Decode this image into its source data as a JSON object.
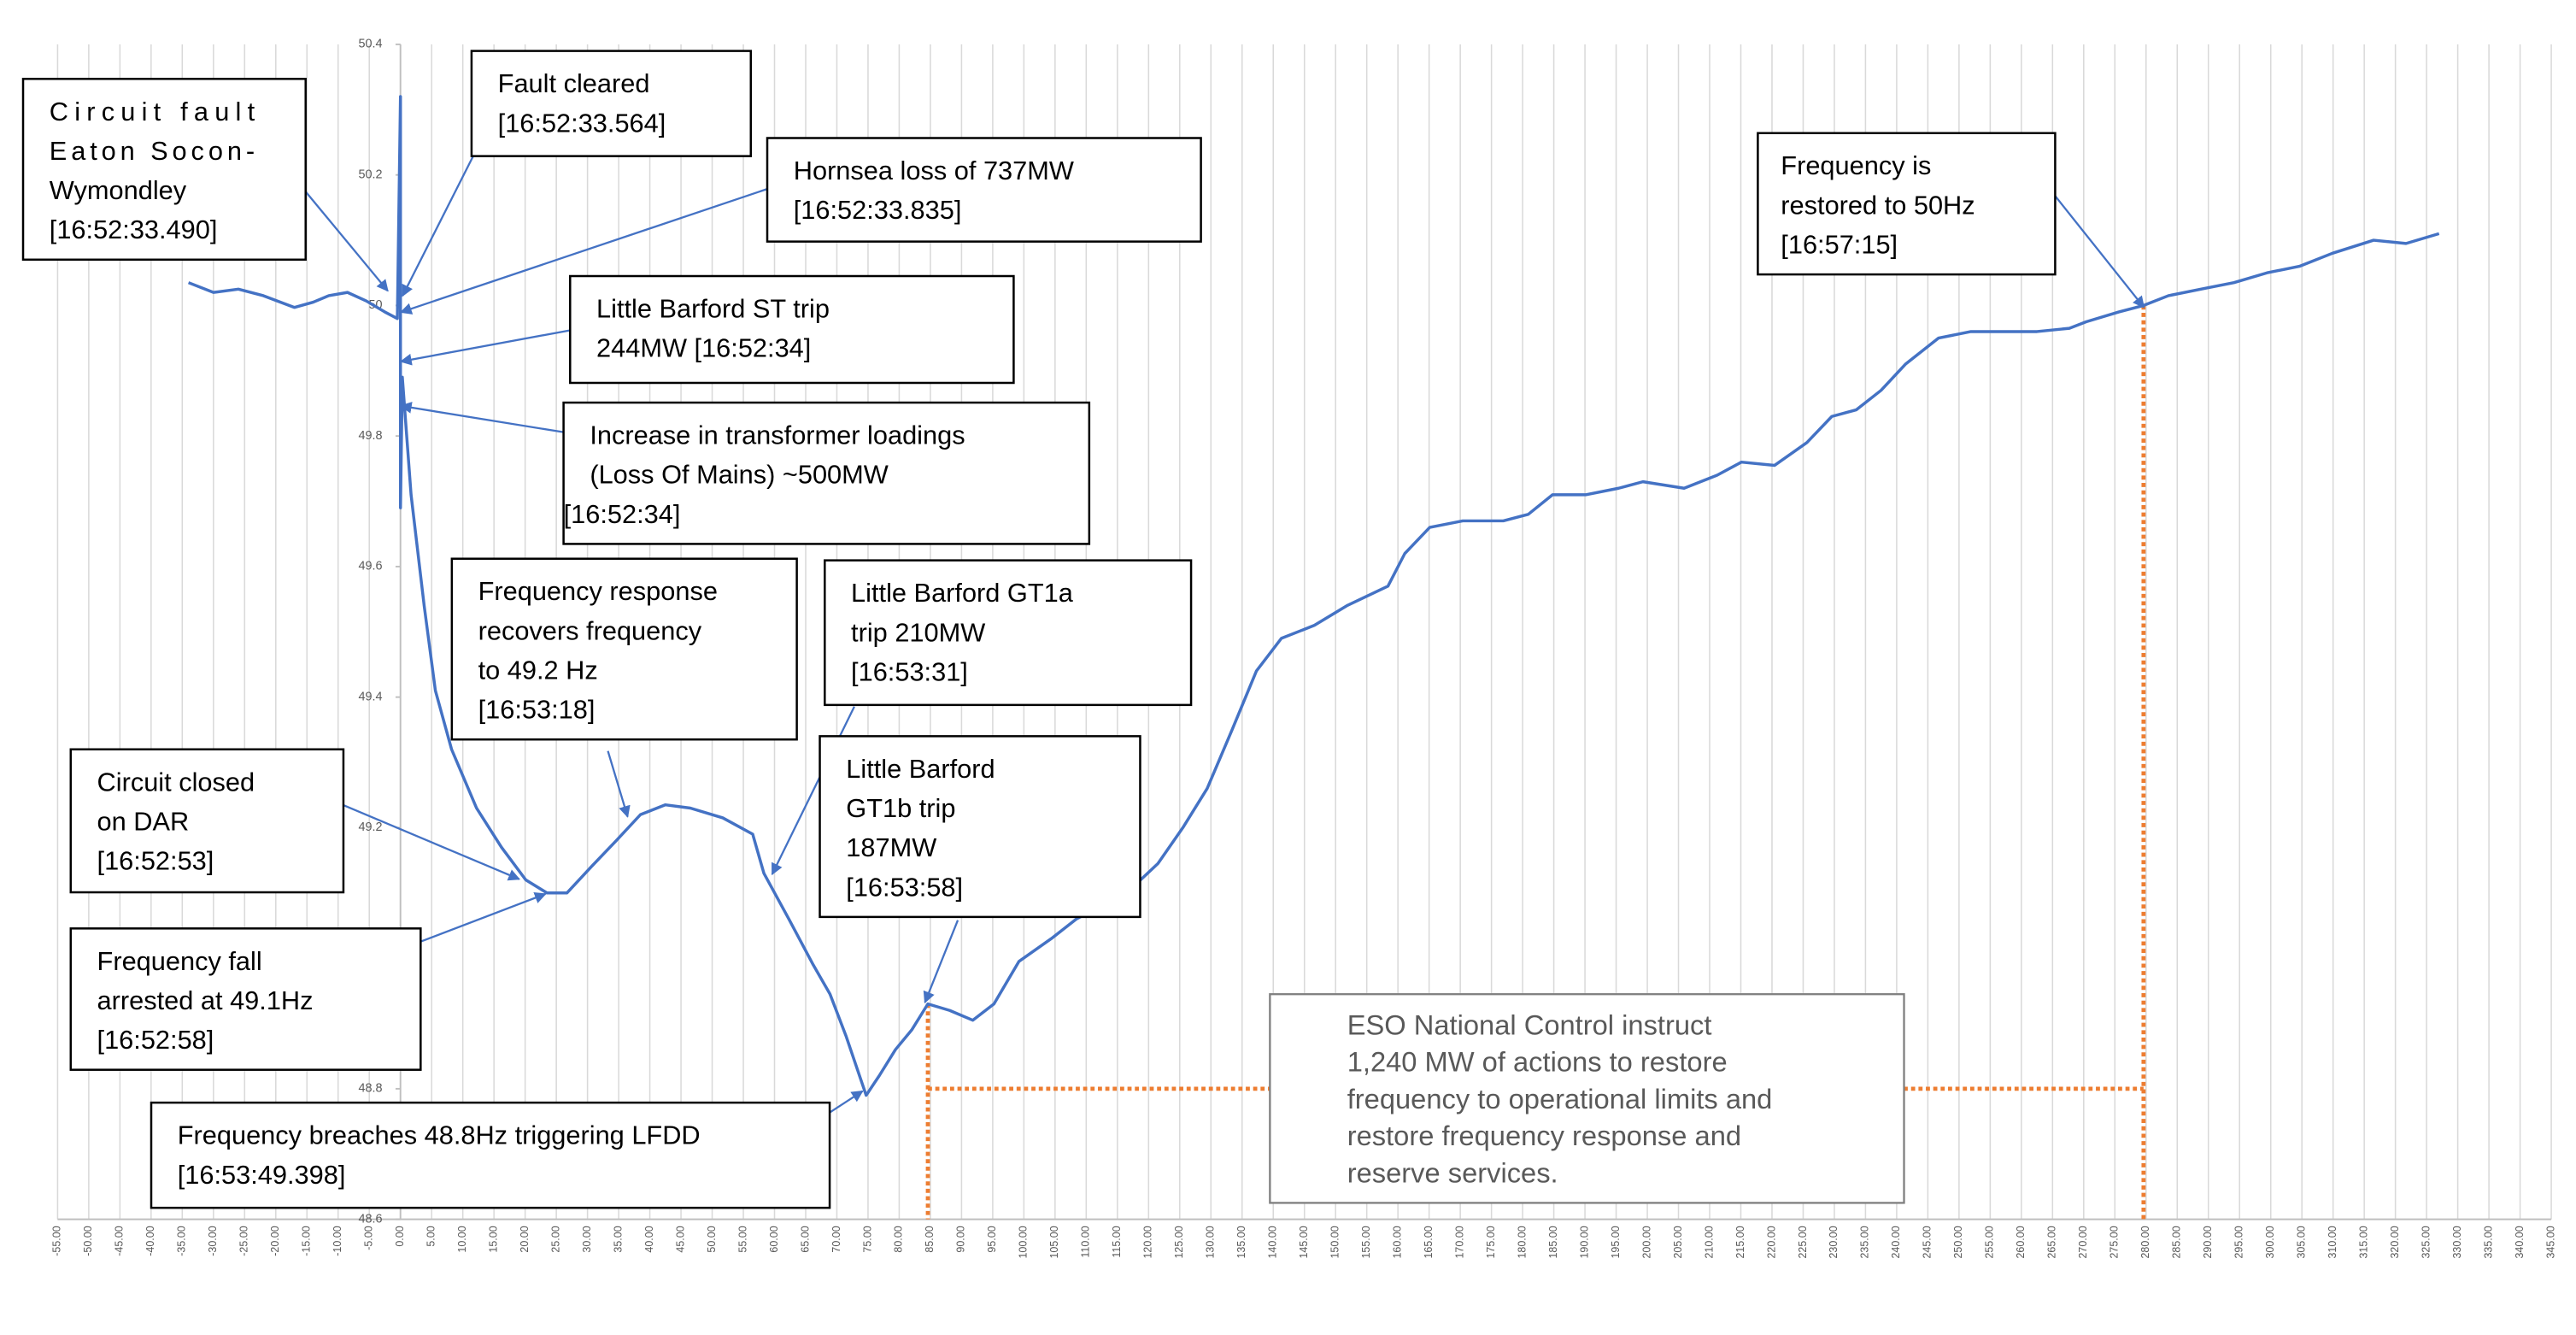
{
  "chart_data": {
    "type": "line",
    "x": [
      -34,
      -30,
      -26,
      -22,
      -17,
      -14,
      -11.5,
      -8.5,
      -5.5,
      -2.5,
      -0.5,
      0,
      0,
      0.3,
      1.7,
      3.8,
      5.6,
      8.2,
      12.2,
      16.2,
      20.1,
      23.5,
      26.7,
      30.6,
      34.6,
      38.5,
      42.5,
      46.5,
      51.7,
      56.5,
      58.3,
      62.3,
      66.2,
      68.9,
      71.5,
      74.7,
      76.8,
      79.4,
      82,
      84.6,
      88.1,
      91.8,
      95.2,
      99.2,
      104.4,
      108.4,
      112.3,
      117.6,
      121.5,
      125.5,
      129.4,
      133.4,
      137.3,
      141.3,
      146.6,
      151.8,
      158.4,
      161.1,
      165.1,
      170.4,
      176.9,
      180.9,
      184.8,
      190.1,
      195.4,
      199.3,
      205.9,
      211.2,
      215.1,
      220.4,
      225.6,
      229.6,
      233.5,
      237.5,
      241.4,
      246.7,
      251.9,
      262.5,
      267.7,
      270.4,
      275.6,
      279.6,
      283.6,
      288.8,
      294.1,
      299.4,
      304.6,
      309.9,
      316.5,
      321.7,
      327
    ],
    "series": [
      {
        "color": "#4472c4",
        "values": [
          50.035,
          50.02,
          50.025,
          50.015,
          49.997,
          50.005,
          50.015,
          50.02,
          50.007,
          49.99,
          49.98,
          50.32,
          49.69,
          49.89,
          49.71,
          49.54,
          49.41,
          49.32,
          49.23,
          49.17,
          49.12,
          49.1,
          49.1,
          49.14,
          49.18,
          49.22,
          49.235,
          49.23,
          49.215,
          49.19,
          49.13,
          49.06,
          48.99,
          48.945,
          48.88,
          48.79,
          48.82,
          48.86,
          48.89,
          48.93,
          48.92,
          48.905,
          48.93,
          48.995,
          49.03,
          49.06,
          49.08,
          49.11,
          49.145,
          49.2,
          49.26,
          49.35,
          49.44,
          49.49,
          49.51,
          49.54,
          49.57,
          49.62,
          49.66,
          49.67,
          49.67,
          49.68,
          49.71,
          49.71,
          49.72,
          49.73,
          49.72,
          49.74,
          49.76,
          49.755,
          49.79,
          49.83,
          49.84,
          49.87,
          49.91,
          49.95,
          49.96,
          49.96,
          49.965,
          49.975,
          49.99,
          50.0,
          50.015,
          50.025,
          50.035,
          50.05,
          50.06,
          50.08,
          50.1,
          50.095,
          50.11
        ]
      }
    ],
    "xlim": [
      -55,
      345
    ],
    "ylim": [
      48.6,
      50.4
    ],
    "yticks": [
      48.6,
      48.8,
      49,
      49.2,
      49.4,
      49.6,
      49.8,
      50,
      50.2,
      50.4
    ],
    "xticks": [
      {
        "value": -55,
        "label": "-55.00"
      },
      {
        "value": -50,
        "label": "-50.00"
      },
      {
        "value": -45,
        "label": "-45.00"
      },
      {
        "value": -40,
        "label": "-40.00"
      },
      {
        "value": -35,
        "label": "-35.00"
      },
      {
        "value": -30,
        "label": "-30.00"
      },
      {
        "value": -25,
        "label": "-25.00"
      },
      {
        "value": -20,
        "label": "-20.00"
      },
      {
        "value": -15,
        "label": "-15.00"
      },
      {
        "value": -10,
        "label": "-10.00"
      },
      {
        "value": -5,
        "label": "-5.00"
      },
      {
        "value": 0,
        "label": "0.00"
      },
      {
        "value": 5,
        "label": "5.00"
      },
      {
        "value": 10,
        "label": "10.00"
      },
      {
        "value": 15,
        "label": "15.00"
      },
      {
        "value": 20,
        "label": "20.00"
      },
      {
        "value": 25,
        "label": "25.00"
      },
      {
        "value": 30,
        "label": "30.00"
      },
      {
        "value": 35,
        "label": "35.00"
      },
      {
        "value": 40,
        "label": "40.00"
      },
      {
        "value": 45,
        "label": "45.00"
      },
      {
        "value": 50,
        "label": "50.00"
      },
      {
        "value": 55,
        "label": "55.00"
      },
      {
        "value": 60,
        "label": "60.00"
      },
      {
        "value": 65,
        "label": "65.00"
      },
      {
        "value": 70,
        "label": "70.00"
      },
      {
        "value": 75,
        "label": "75.00"
      },
      {
        "value": 80,
        "label": "80.00"
      },
      {
        "value": 85,
        "label": "85.00"
      },
      {
        "value": 90,
        "label": "90.00"
      },
      {
        "value": 95,
        "label": "95.00"
      },
      {
        "value": 100,
        "label": "100.00"
      },
      {
        "value": 105,
        "label": "105.00"
      },
      {
        "value": 110,
        "label": "110.00"
      },
      {
        "value": 115,
        "label": "115.00"
      },
      {
        "value": 120,
        "label": "120.00"
      },
      {
        "value": 125,
        "label": "125.00"
      },
      {
        "value": 130,
        "label": "130.00"
      },
      {
        "value": 135,
        "label": "135.00"
      },
      {
        "value": 140,
        "label": "140.00"
      },
      {
        "value": 145,
        "label": "145.00"
      },
      {
        "value": 150,
        "label": "150.00"
      },
      {
        "value": 155,
        "label": "155.00"
      },
      {
        "value": 160,
        "label": "160.00"
      },
      {
        "value": 165,
        "label": "165.00"
      },
      {
        "value": 170,
        "label": "170.00"
      },
      {
        "value": 175,
        "label": "175.00"
      },
      {
        "value": 180,
        "label": "180.00"
      },
      {
        "value": 185,
        "label": "185.00"
      },
      {
        "value": 190,
        "label": "190.00"
      },
      {
        "value": 195,
        "label": "195.00"
      },
      {
        "value": 200,
        "label": "200.00"
      },
      {
        "value": 205,
        "label": "205.00"
      },
      {
        "value": 210,
        "label": "210.00"
      },
      {
        "value": 215,
        "label": "215.00"
      },
      {
        "value": 220,
        "label": "220.00"
      },
      {
        "value": 225,
        "label": "225.00"
      },
      {
        "value": 230,
        "label": "230.00"
      },
      {
        "value": 235,
        "label": "235.00"
      },
      {
        "value": 240,
        "label": "240.00"
      },
      {
        "value": 245,
        "label": "245.00"
      },
      {
        "value": 250,
        "label": "250.00"
      },
      {
        "value": 255,
        "label": "255.00"
      },
      {
        "value": 260,
        "label": "260.00"
      },
      {
        "value": 265,
        "label": "265.00"
      },
      {
        "value": 270,
        "label": "270.00"
      },
      {
        "value": 275,
        "label": "275.00"
      },
      {
        "value": 280,
        "label": "280.00"
      },
      {
        "value": 285,
        "label": "285.00"
      },
      {
        "value": 290,
        "label": "290.00"
      },
      {
        "value": 295,
        "label": "295.00"
      },
      {
        "value": 300,
        "label": "300.00"
      },
      {
        "value": 305,
        "label": "305.00"
      },
      {
        "value": 310,
        "label": "310.00"
      },
      {
        "value": 315,
        "label": "315.00"
      },
      {
        "value": 320,
        "label": "320.00"
      },
      {
        "value": 325,
        "label": "325.00"
      },
      {
        "value": 330,
        "label": "330.00"
      },
      {
        "value": 335,
        "label": "335.00"
      },
      {
        "value": 340,
        "label": "340.00"
      },
      {
        "value": 345,
        "label": "345.00"
      }
    ],
    "grid": true,
    "guides": [
      {
        "x": 84.6,
        "y": 48.93
      },
      {
        "x": 279.6,
        "y": 50.0
      }
    ],
    "guide_level": 48.8,
    "guide_color": "#ed7d31",
    "annotations": [
      [
        "Circuit fault",
        "Eaton Socon-",
        "Wymondley",
        "[16:52:33.490]"
      ],
      [
        "Fault cleared",
        "[16:52:33.564]"
      ],
      [
        "Hornsea loss of 737MW",
        "[16:52:33.835]"
      ],
      [
        "Little Barford ST trip",
        "244MW [16:52:34]"
      ],
      [
        "Increase in transformer loadings",
        "(Loss Of Mains) ~500MW",
        "[16:52:34]"
      ],
      [
        "Frequency response",
        "recovers frequency",
        "to 49.2 Hz",
        "[16:53:18]"
      ],
      [
        "Little Barford GT1a",
        "trip 210MW",
        "[16:53:31]"
      ],
      [
        "Little Barford",
        "GT1b trip",
        "187MW",
        "[16:53:58]"
      ],
      [
        "Circuit closed",
        "on DAR",
        "[16:52:53]"
      ],
      [
        "Frequency fall",
        "arrested at 49.1Hz",
        "[16:52:58]"
      ],
      [
        "Frequency breaches 48.8Hz triggering LFDD",
        "[16:53:49.398]"
      ],
      [
        "Frequency is",
        "restored to 50Hz",
        "[16:57:15]"
      ],
      [
        "ESO National Control instruct",
        "1,240 MW of actions to restore",
        "frequency to operational limits and",
        "restore frequency response and",
        "reserve services."
      ]
    ]
  }
}
